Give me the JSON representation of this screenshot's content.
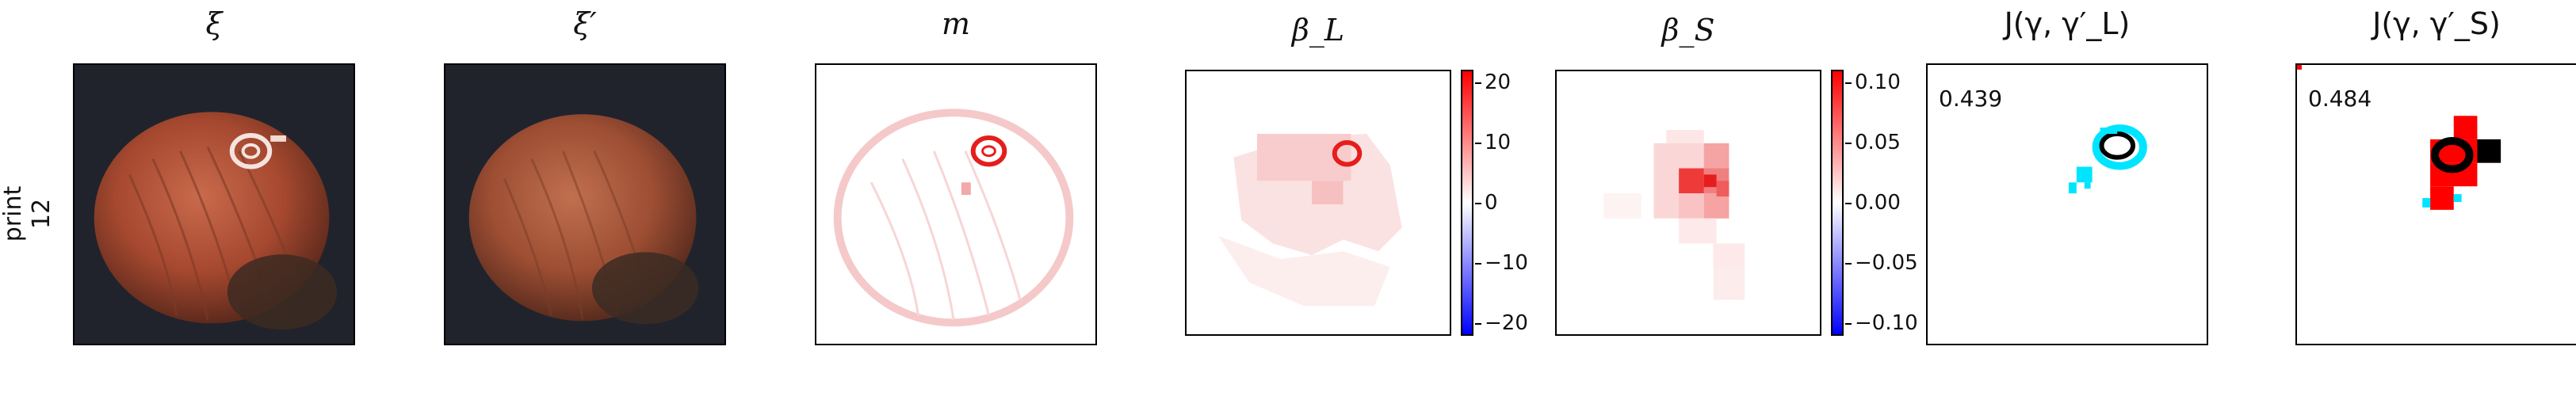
{
  "row_label": {
    "line1": "print",
    "line2": "12"
  },
  "panels": [
    {
      "title": "ξ"
    },
    {
      "title": "ξ′"
    },
    {
      "title": "m"
    },
    {
      "title": "β_L",
      "colorbar": [
        "20",
        "10",
        "0",
        "−10",
        "−20"
      ]
    },
    {
      "title": "β_S",
      "colorbar": [
        "0.10",
        "0.05",
        "0.00",
        "−0.05",
        "−0.10"
      ]
    },
    {
      "title": "J(γ, γ′_L)",
      "score": "0.439"
    },
    {
      "title": "J(γ, γ′_S)",
      "score": "0.484"
    }
  ],
  "colors": {
    "positive": "#ff0000",
    "zero": "#ffffff",
    "negative": "#0000ff",
    "overlap": "#000000",
    "pred_only": "#00e5ff",
    "gt_only": "#ff0000"
  }
}
